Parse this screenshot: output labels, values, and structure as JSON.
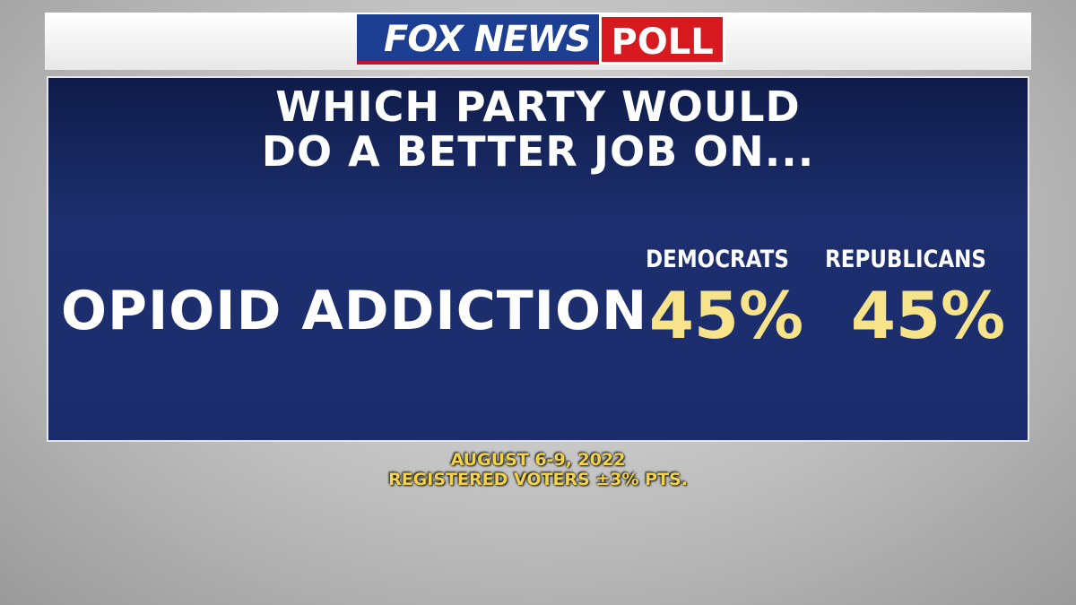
{
  "logo": {
    "brand": "FOX NEWS",
    "tag": "POLL"
  },
  "title": [
    "WHICH PARTY WOULD",
    "DO A BETTER JOB ON..."
  ],
  "table": {
    "columns": [
      "DEMOCRATS",
      "REPUBLICANS"
    ],
    "rows": [
      {
        "issue": "OPIOID ADDICTION",
        "values": [
          "45%",
          "45%"
        ]
      }
    ]
  },
  "footer": [
    "AUGUST 6-9, 2022",
    "REGISTERED VOTERS ±3% PTS."
  ]
}
